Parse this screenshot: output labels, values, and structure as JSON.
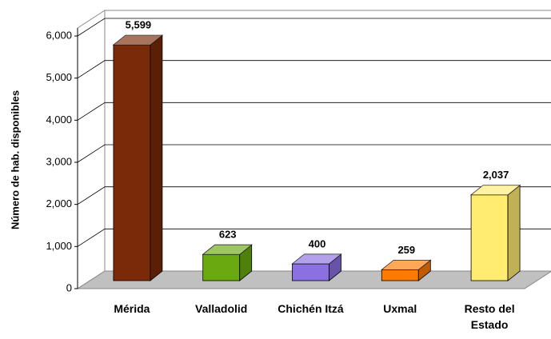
{
  "chart_data": {
    "type": "bar3d",
    "y_label": "Número de hab. disponibles",
    "categories": [
      "Mérida",
      "Valladolid",
      "Chichén Itzá",
      "Uxmal",
      "Resto del Estado"
    ],
    "values": [
      5599,
      623,
      400,
      259,
      2037
    ],
    "value_labels": [
      "5,599",
      "623",
      "400",
      "259",
      "2,037"
    ],
    "colors": [
      "#7a2a08",
      "#6aaa10",
      "#8a70e0",
      "#ff7a00",
      "#ffec70"
    ],
    "ylim": [
      0,
      6000
    ],
    "yticks": [
      0,
      {
        "value": 1000,
        "label": "1,000"
      },
      {
        "value": 2000,
        "label": "2,000"
      },
      {
        "value": 3000,
        "label": "3,000"
      },
      {
        "value": 4000,
        "label": "4,000"
      },
      {
        "value": 5000,
        "label": "5,000"
      },
      {
        "value": 6000,
        "label": "6,000"
      }
    ],
    "grid": true
  }
}
